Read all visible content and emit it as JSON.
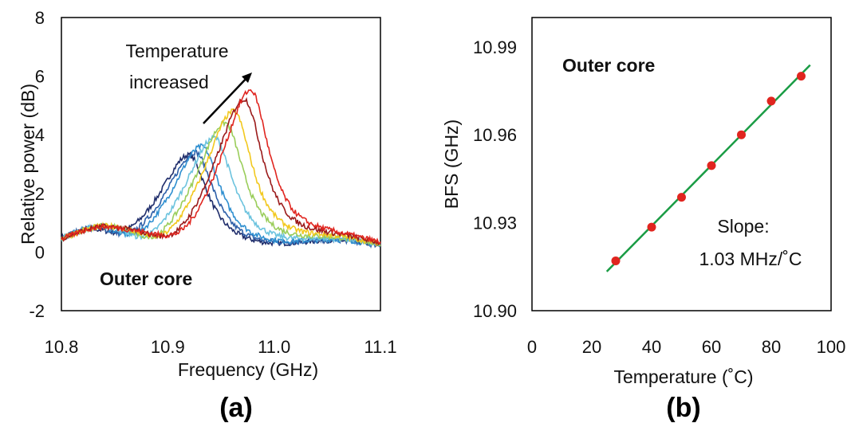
{
  "chart_data": [
    {
      "type": "line",
      "panel_label": "(a)",
      "xlabel": "Frequency (GHz)",
      "ylabel": "Relative power (dB)",
      "xlim": [
        10.8,
        11.1
      ],
      "ylim": [
        -2,
        8
      ],
      "xticks": [
        "10.8",
        "10.9",
        "11.0",
        "11.1"
      ],
      "yticks": [
        "-2",
        "0",
        "2",
        "4",
        "6",
        "8"
      ],
      "grid": false,
      "annotations": {
        "temperature_line1": "Temperature",
        "temperature_line2": "increased",
        "core_label": "Outer core"
      },
      "series": [
        {
          "color": "#1f2d6b",
          "peak_freq": 10.92,
          "peak_db": 3.3
        },
        {
          "color": "#2e5fa8",
          "peak_freq": 10.926,
          "peak_db": 3.4
        },
        {
          "color": "#2f8fd0",
          "peak_freq": 10.932,
          "peak_db": 3.6
        },
        {
          "color": "#6cc3de",
          "peak_freq": 10.944,
          "peak_db": 3.9
        },
        {
          "color": "#9acd5a",
          "peak_freq": 10.954,
          "peak_db": 4.4
        },
        {
          "color": "#f2c81e",
          "peak_freq": 10.962,
          "peak_db": 4.8
        },
        {
          "color": "#9b1b1b",
          "peak_freq": 10.972,
          "peak_db": 5.2
        },
        {
          "color": "#e0251f",
          "peak_freq": 10.978,
          "peak_db": 5.5
        }
      ]
    },
    {
      "type": "scatter",
      "panel_label": "(b)",
      "xlabel": "Temperature (˚C)",
      "ylabel": "BFS (GHz)",
      "xlim": [
        0,
        100
      ],
      "ylim": [
        10.9,
        11.0
      ],
      "xticks": [
        "0",
        "20",
        "40",
        "60",
        "80",
        "100"
      ],
      "yticks": [
        "10.90",
        "10.93",
        "10.96",
        "10.99"
      ],
      "grid": false,
      "points": {
        "x": [
          28,
          40,
          50,
          60,
          70,
          80,
          90
        ],
        "y": [
          10.917,
          10.9285,
          10.9387,
          10.9495,
          10.96,
          10.9715,
          10.98
        ]
      },
      "fit": {
        "slope_ghz_per_c": 0.00103,
        "x_range": [
          25,
          93
        ],
        "color": "#1a9c45"
      },
      "point_color": "#e0251f",
      "annotations": {
        "core_label": "Outer core",
        "slope_line1": "Slope:",
        "slope_line2": "1.03 MHz/˚C"
      }
    }
  ]
}
